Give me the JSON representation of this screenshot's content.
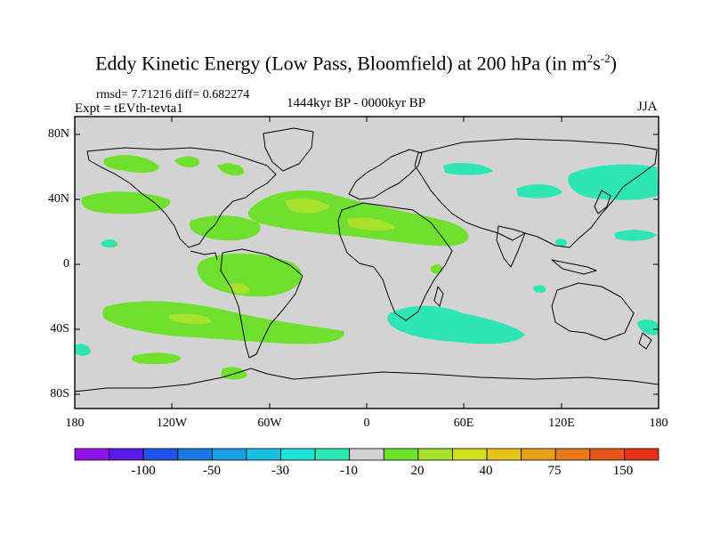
{
  "title": {
    "main": "Eddy Kinetic Energy (Low Pass, Bloomfield) at 200 hPa (in m",
    "sup1": "2",
    "mid": "s",
    "sup2": "-2",
    "end": ")"
  },
  "stats": "rmsd= 7.71216 diff= 0.682274",
  "experiment": "Expt = tEVth-tevta1",
  "period": "1444kyr BP - 0000kyr BP",
  "season": "JJA",
  "map": {
    "land_color": "#d3d3d3",
    "lat_labels": [
      "80N",
      "40N",
      "0",
      "40S",
      "80S"
    ],
    "lon_labels": [
      "180",
      "120W",
      "60W",
      "0",
      "60E",
      "120E",
      "180"
    ]
  },
  "colorbar": {
    "colors": [
      "#8f14e6",
      "#5a1aeb",
      "#2352e6",
      "#1a78e1",
      "#1a9ee6",
      "#1abedf",
      "#1ee1d7",
      "#2de6b4",
      "#d3d3d3",
      "#6fe02d",
      "#a9e22d",
      "#d0e21e",
      "#e6c31a",
      "#e6a01a",
      "#e67a1a",
      "#e6561a",
      "#e6321a"
    ],
    "tick_labels": [
      "-100",
      "-50",
      "-30",
      "-10",
      "20",
      "40",
      "75",
      "150"
    ]
  }
}
